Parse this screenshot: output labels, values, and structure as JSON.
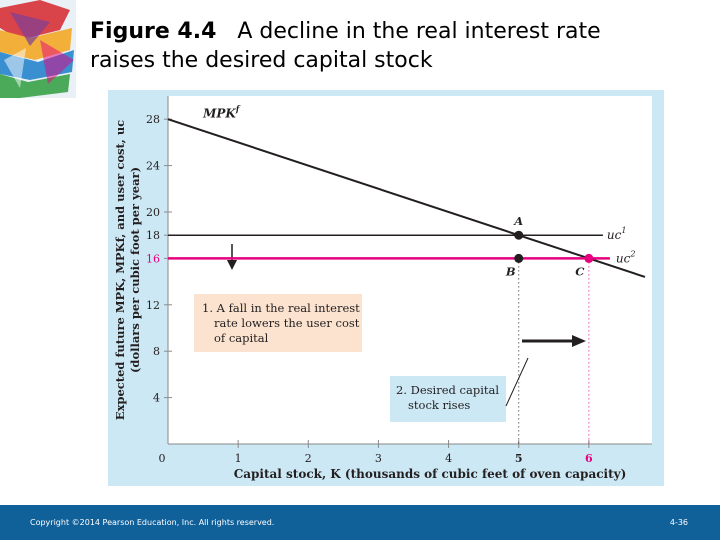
{
  "title": {
    "figure_label": "Figure 4.4",
    "text_line1": "A decline in the real interest rate",
    "text_line2": "raises the desired capital stock"
  },
  "footer": {
    "copyright": "Copyright ©2014 Pearson Education, Inc. All rights reserved.",
    "page": "4-36"
  },
  "colors": {
    "chart_background": "#cce8f4",
    "plot_background": "#ffffff",
    "mpk_line": "#231f20",
    "uc1_line": "#231f20",
    "uc2_line": "#e6007e",
    "annotation_box_1": "#fbe3d0",
    "annotation_box_2": "#cce8f4",
    "footer": "#10609a"
  },
  "chart_data": {
    "type": "line",
    "xlabel": "Capital stock, K (thousands of cubic feet of oven capacity)",
    "ylabel_line1": "Expected future MPK, MPKf, and user cost, uc",
    "ylabel_line2": "(dollars per cubic foot per year)",
    "xlim": [
      0,
      6.9
    ],
    "ylim": [
      0,
      30
    ],
    "x_ticks": [
      "0",
      "1",
      "2",
      "3",
      "4",
      "5",
      "6"
    ],
    "y_ticks": [
      "4",
      "8",
      "12",
      "16",
      "18",
      "20",
      "24",
      "28"
    ],
    "series": [
      {
        "name": "MPKf",
        "x": [
          0,
          6.8
        ],
        "y": [
          28,
          14.4
        ]
      },
      {
        "name": "uc1",
        "x": [
          0,
          6.2
        ],
        "y": [
          18,
          18
        ]
      },
      {
        "name": "uc2",
        "x": [
          0,
          6.3
        ],
        "y": [
          16,
          16
        ]
      }
    ],
    "points": [
      {
        "label": "A",
        "x": 5,
        "y": 18
      },
      {
        "label": "B",
        "x": 5,
        "y": 16
      },
      {
        "label": "C",
        "x": 6,
        "y": 16
      }
    ],
    "annotations": [
      {
        "text_lines": [
          "1. A fall in the real interest",
          "rate lowers the user cost",
          "of capital"
        ]
      },
      {
        "text_lines": [
          "2. Desired capital",
          "stock rises"
        ]
      }
    ]
  }
}
